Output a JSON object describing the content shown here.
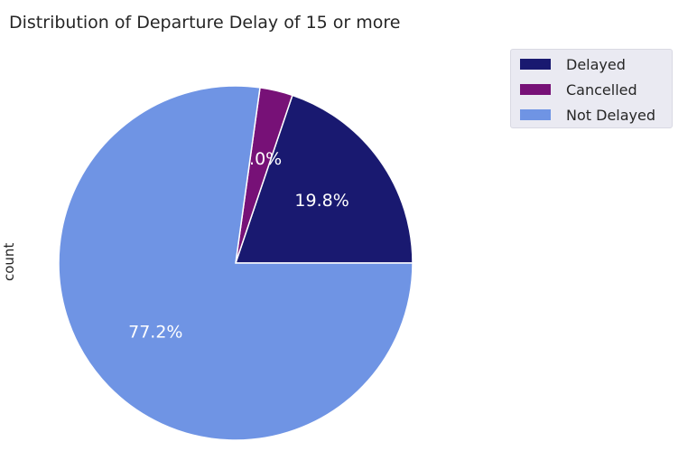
{
  "chart_data": {
    "type": "pie",
    "title": "Distribution of Departure Delay of 15 or more",
    "ylabel": "count",
    "slices": [
      {
        "label": "Delayed",
        "value": 19.8,
        "pct_label": "19.8%",
        "color": "#191970"
      },
      {
        "label": "Cancelled",
        "value": 3.0,
        "pct_label": "3.0%",
        "color": "#771177"
      },
      {
        "label": "Not Delayed",
        "value": 77.2,
        "pct_label": "77.2%",
        "color": "#6f94e4"
      }
    ],
    "legend": {
      "placement": "upper-right",
      "entries": [
        "Delayed",
        "Cancelled",
        "Not Delayed"
      ]
    }
  }
}
